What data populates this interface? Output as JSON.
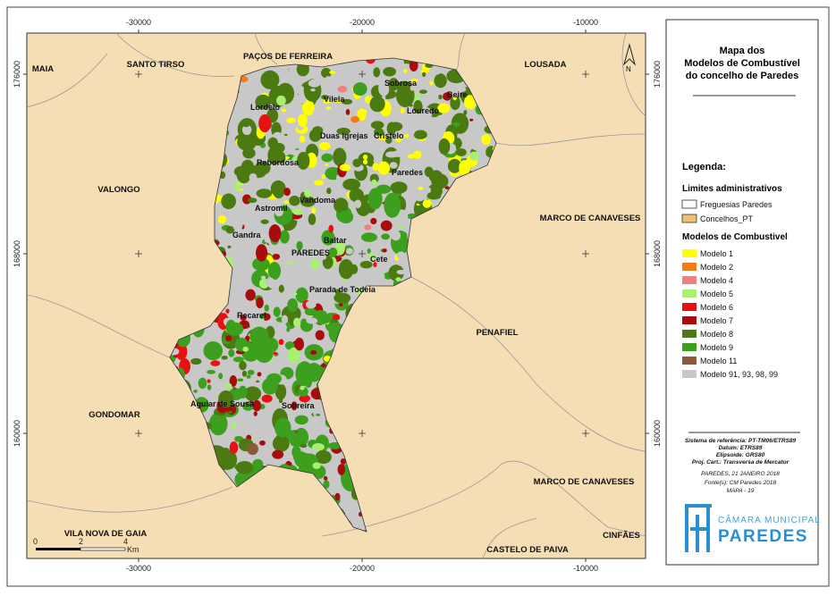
{
  "map": {
    "x_ticks": [
      -30000,
      -20000,
      -10000
    ],
    "y_ticks": [
      176000,
      168000,
      160000
    ],
    "outside_places": [
      "MAIA",
      "SANTO TIRSO",
      "PAÇOS DE FERREIRA",
      "LOUSADA",
      "VALONGO",
      "MARCO DE CANAVESES",
      "PENAFIEL",
      "GONDOMAR",
      "MARCO DE CANAVESES",
      "VILA NOVA DE GAIA",
      "CASTELO DE PAIVA",
      "CINFÃES"
    ],
    "parishes": [
      "Sobrosa",
      "Beire",
      "Vilela",
      "Lordelo",
      "Louredo",
      "Duas Igrejas",
      "Cristelo",
      "Rebordosa",
      "Paredes",
      "Vandoma",
      "Astromil",
      "Gandra",
      "Baltar",
      "PAREDES",
      "Cete",
      "Parada de Todeia",
      "Recarei",
      "Aguiar de Sousa",
      "Sobreira"
    ],
    "scale_bar": {
      "ticks": [
        "0",
        "2",
        "4"
      ],
      "unit": "Km"
    },
    "north": "N"
  },
  "legend": {
    "title": [
      "Mapa dos",
      "Modelos de Combustível",
      "do concelho de Paredes"
    ],
    "heading": "Legenda:",
    "admin_title": "Limites administrativos",
    "admin_items": [
      {
        "label": "Freguesias Paredes",
        "color": "#ffffff"
      },
      {
        "label": "Concelhos_PT",
        "color": "#f0c070"
      }
    ],
    "fuel_title": "Modelos de Combustivel",
    "fuel_items": [
      {
        "label": "Modelo 1",
        "color": "#ffff00"
      },
      {
        "label": "Modelo 2",
        "color": "#f07d1a"
      },
      {
        "label": "Modelo 4",
        "color": "#f08080"
      },
      {
        "label": "Modelo 5",
        "color": "#a8f070"
      },
      {
        "label": "Modelo 6",
        "color": "#e81010"
      },
      {
        "label": "Modelo 7",
        "color": "#a80c0c"
      },
      {
        "label": "Modelo 8",
        "color": "#4a7a10"
      },
      {
        "label": "Modelo 9",
        "color": "#3ca01e"
      },
      {
        "label": "Modelo 11",
        "color": "#8a5a3a"
      },
      {
        "label": "Modelo 91, 93, 98, 99",
        "color": "#c8c8c8"
      }
    ],
    "meta": [
      "Sistema de referência: PT-TM06/ETRS89",
      "Datum: ETRS89",
      "Elipsoide: GRS80",
      "Proj. Cart.: Transversa de Mercator",
      "PAREDES, 21 JANEIRO 2018",
      "Fonte(s): CM Paredes 2018",
      "MAPA - 19"
    ],
    "logo": [
      "CÂMARA MUNICIPAL",
      "PAREDES"
    ]
  }
}
